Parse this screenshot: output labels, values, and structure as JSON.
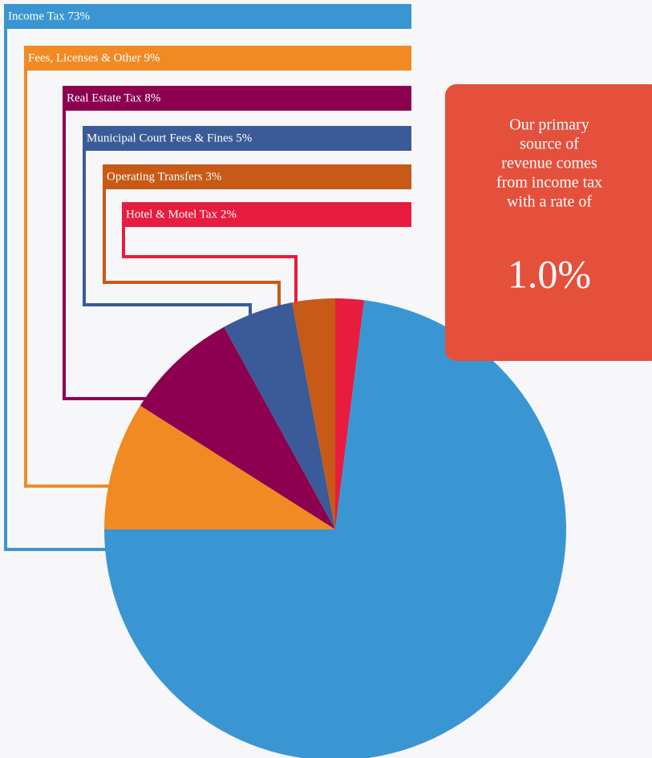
{
  "chart_data": {
    "type": "pie",
    "categories": [
      "Income Tax",
      "Fees, Licenses & Other",
      "Real Estate Tax",
      "Municipal Court Fees & Fines",
      "Operating Transfers",
      "Hotel & Motel Tax"
    ],
    "values": [
      73,
      9,
      8,
      5,
      3,
      2
    ],
    "value_labels": [
      "73%",
      "9%",
      "8%",
      "5%",
      "3%",
      "2%"
    ],
    "colors": [
      "#3a96d2",
      "#f28a24",
      "#8c004f",
      "#3a5b98",
      "#c65a16",
      "#e81c3f"
    ],
    "annotation": {
      "lines": [
        "Our primary",
        "source of",
        "revenue comes",
        "from income tax",
        "with a rate of"
      ],
      "highlight": "1.0%"
    }
  }
}
